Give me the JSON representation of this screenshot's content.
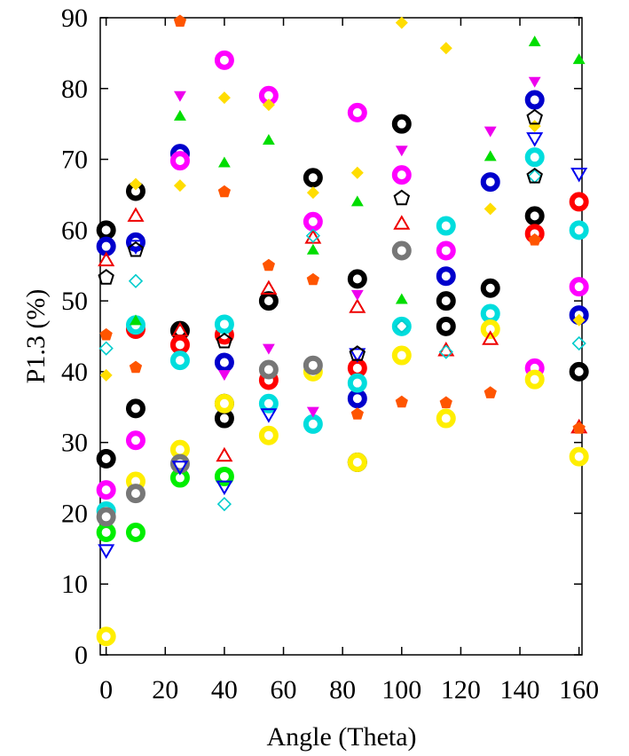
{
  "chart_data": {
    "type": "scatter",
    "xlabel": "Angle (Theta)",
    "ylabel": "P1.3 (%)",
    "xlim": [
      -2,
      161
    ],
    "ylim": [
      0,
      90
    ],
    "xticks": [
      0,
      20,
      40,
      60,
      80,
      100,
      120,
      140,
      160
    ],
    "yticks": [
      0,
      10,
      20,
      30,
      40,
      50,
      60,
      70,
      80,
      90
    ],
    "grid": false,
    "legend": "none",
    "series": [
      {
        "marker": "ring-thick",
        "color": "#000000",
        "points": [
          [
            0,
            60
          ],
          [
            0,
            27.7
          ],
          [
            10,
            65.5
          ],
          [
            10,
            34.8
          ],
          [
            25,
            45.8
          ],
          [
            40,
            35.5
          ],
          [
            40,
            33.4
          ],
          [
            55,
            50
          ],
          [
            70,
            67.4
          ],
          [
            85,
            53.1
          ],
          [
            85,
            27.2
          ],
          [
            100,
            75
          ],
          [
            115,
            50
          ],
          [
            115,
            46.4
          ],
          [
            130,
            51.8
          ],
          [
            145,
            62
          ],
          [
            160,
            40
          ]
        ]
      },
      {
        "marker": "ring-thick",
        "color": "#0000cc",
        "points": [
          [
            0,
            57.7
          ],
          [
            10,
            58.3
          ],
          [
            25,
            70.8
          ],
          [
            40,
            41.3
          ],
          [
            85,
            36.2
          ],
          [
            115,
            53.5
          ],
          [
            130,
            66.8
          ],
          [
            145,
            78.4
          ],
          [
            160,
            48
          ]
        ]
      },
      {
        "marker": "ring-thick",
        "color": "#ff0000",
        "points": [
          [
            10,
            46
          ],
          [
            25,
            43.8
          ],
          [
            40,
            45.2
          ],
          [
            55,
            38.8
          ],
          [
            85,
            40.5
          ],
          [
            145,
            59.5
          ],
          [
            160,
            64
          ]
        ]
      },
      {
        "marker": "ring-thick",
        "color": "#ff00ff",
        "points": [
          [
            0,
            23.3
          ],
          [
            10,
            30.3
          ],
          [
            25,
            69.8
          ],
          [
            40,
            84
          ],
          [
            55,
            79
          ],
          [
            70,
            61.2
          ],
          [
            85,
            76.6
          ],
          [
            100,
            67.8
          ],
          [
            115,
            57.1
          ],
          [
            145,
            40.5
          ],
          [
            160,
            52
          ]
        ]
      },
      {
        "marker": "ring-thick",
        "color": "#00dddd",
        "points": [
          [
            0,
            20.3
          ],
          [
            10,
            46.6
          ],
          [
            25,
            41.6
          ],
          [
            40,
            46.7
          ],
          [
            55,
            35.5
          ],
          [
            70,
            32.6
          ],
          [
            85,
            38.4
          ],
          [
            100,
            46.4
          ],
          [
            115,
            60.6
          ],
          [
            130,
            48.2
          ],
          [
            145,
            70.3
          ],
          [
            160,
            60
          ]
        ]
      },
      {
        "marker": "ring-thick",
        "color": "#00ee00",
        "points": [
          [
            0,
            17.3
          ],
          [
            10,
            17.3
          ],
          [
            25,
            25
          ],
          [
            40,
            25.2
          ]
        ]
      },
      {
        "marker": "ring-thick",
        "color": "#ffee00",
        "points": [
          [
            0,
            2.6
          ],
          [
            10,
            24.5
          ],
          [
            25,
            29
          ],
          [
            40,
            35.5
          ],
          [
            55,
            31
          ],
          [
            70,
            40
          ],
          [
            85,
            27.2
          ],
          [
            100,
            42.3
          ],
          [
            115,
            33.4
          ],
          [
            130,
            46
          ],
          [
            145,
            38.9
          ],
          [
            160,
            28
          ]
        ]
      },
      {
        "marker": "ring-thick",
        "color": "#777777",
        "points": [
          [
            0,
            19.5
          ],
          [
            10,
            22.8
          ],
          [
            25,
            27
          ],
          [
            55,
            40.3
          ],
          [
            70,
            40.9
          ],
          [
            100,
            57.1
          ]
        ]
      },
      {
        "marker": "tri-up-open",
        "color": "#ee0000",
        "points": [
          [
            0,
            55.7
          ],
          [
            10,
            62
          ],
          [
            25,
            45.8
          ],
          [
            40,
            28.1
          ],
          [
            55,
            51.7
          ],
          [
            70,
            58.9
          ],
          [
            85,
            49.1
          ],
          [
            100,
            60.9
          ],
          [
            115,
            43
          ],
          [
            130,
            44.6
          ],
          [
            160,
            32.1
          ]
        ]
      },
      {
        "marker": "tri-up-filled",
        "color": "#00dd00",
        "points": [
          [
            10,
            47.2
          ],
          [
            25,
            76.1
          ],
          [
            40,
            69.5
          ],
          [
            55,
            72.7
          ],
          [
            70,
            57.2
          ],
          [
            85,
            64
          ],
          [
            100,
            50.2
          ],
          [
            130,
            70.4
          ],
          [
            145,
            86.6
          ],
          [
            160,
            84.1
          ]
        ]
      },
      {
        "marker": "tri-down-filled",
        "color": "#ee00ee",
        "points": [
          [
            25,
            79
          ],
          [
            40,
            39.6
          ],
          [
            55,
            43.3
          ],
          [
            70,
            34.4
          ],
          [
            85,
            50.9
          ],
          [
            100,
            71.3
          ],
          [
            130,
            74
          ],
          [
            145,
            81
          ]
        ]
      },
      {
        "marker": "tri-down-open",
        "color": "#0000ee",
        "points": [
          [
            0,
            14.8
          ],
          [
            10,
            57.8
          ],
          [
            25,
            26.6
          ],
          [
            40,
            23.8
          ],
          [
            55,
            34
          ],
          [
            85,
            42.5
          ],
          [
            145,
            73
          ],
          [
            160,
            68
          ]
        ]
      },
      {
        "marker": "diamond-filled",
        "color": "#ffdd00",
        "points": [
          [
            0,
            39.5
          ],
          [
            10,
            66.5
          ],
          [
            25,
            66.3
          ],
          [
            40,
            78.7
          ],
          [
            55,
            77.7
          ],
          [
            70,
            65.3
          ],
          [
            85,
            68.1
          ],
          [
            100,
            89.3
          ],
          [
            115,
            85.7
          ],
          [
            130,
            63
          ],
          [
            145,
            74.7
          ],
          [
            160,
            47.3
          ]
        ]
      },
      {
        "marker": "diamond-open",
        "color": "#00cccc",
        "points": [
          [
            0,
            43.3
          ],
          [
            10,
            52.8
          ],
          [
            40,
            21.3
          ],
          [
            70,
            59.2
          ],
          [
            100,
            46.4
          ],
          [
            115,
            42.8
          ],
          [
            145,
            67.6
          ],
          [
            160,
            44
          ]
        ]
      },
      {
        "marker": "pentagon-filled",
        "color": "#ff5500",
        "points": [
          [
            0,
            45.2
          ],
          [
            10,
            40.6
          ],
          [
            25,
            89.5
          ],
          [
            40,
            65.4
          ],
          [
            55,
            55
          ],
          [
            70,
            53
          ],
          [
            85,
            34
          ],
          [
            100,
            35.7
          ],
          [
            115,
            35.6
          ],
          [
            130,
            37
          ],
          [
            145,
            58.6
          ],
          [
            160,
            32
          ]
        ]
      },
      {
        "marker": "pentagon-open",
        "color": "#000000",
        "points": [
          [
            0,
            53.3
          ],
          [
            10,
            57.2
          ],
          [
            40,
            44.3
          ],
          [
            85,
            42.5
          ],
          [
            100,
            64.5
          ],
          [
            145,
            75.9
          ],
          [
            145,
            67.6
          ]
        ]
      }
    ]
  }
}
